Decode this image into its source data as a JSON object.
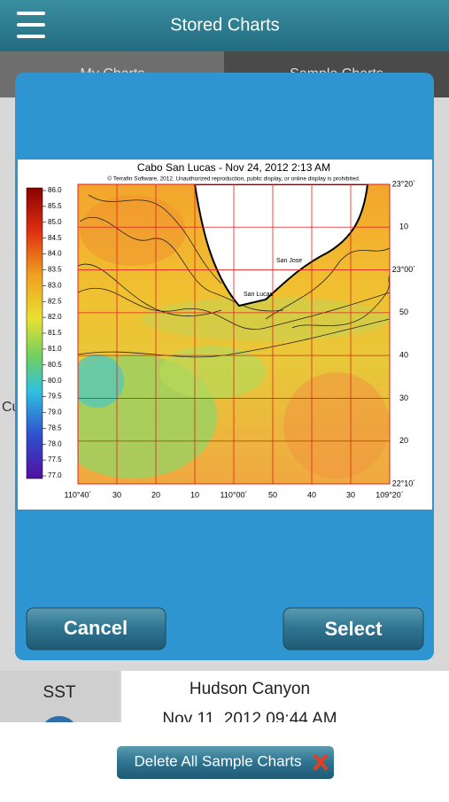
{
  "header": {
    "title": "Stored Charts"
  },
  "tabs": [
    "My Charts",
    "Sample Charts"
  ],
  "list": {
    "left_label": "Cu",
    "item": {
      "type": "SST",
      "name": "Hudson Canyon",
      "date": "Nov 11, 2012 09:44 AM"
    }
  },
  "dialog": {
    "map": {
      "title": "Cabo San Lucas - Nov 24, 2012 2:13 AM",
      "copyright": "© Terrafin Software, 2012.  Unauthorized reproduction, public display, or online display is prohibited.",
      "colorbar_labels": [
        "86.0",
        "85.5",
        "85.0",
        "84.5",
        "84.0",
        "83.5",
        "83.0",
        "82.5",
        "82.0",
        "81.5",
        "81.0",
        "80.5",
        "80.0",
        "79.5",
        "79.0",
        "78.5",
        "78.0",
        "77.5",
        "77.0"
      ],
      "x_labels": [
        "110°40´",
        "30",
        "20",
        "10",
        "110°00´",
        "50",
        "40",
        "30",
        "109°20´"
      ],
      "y_labels": [
        "23°20´",
        "10",
        "23°00´",
        "50",
        "40",
        "30",
        "20",
        "22°10´"
      ],
      "places": [
        "San Jose",
        "San Lucas"
      ]
    },
    "buttons": {
      "cancel": "Cancel",
      "select": "Select"
    }
  },
  "footer": {
    "button": "Delete All Sample Charts"
  }
}
